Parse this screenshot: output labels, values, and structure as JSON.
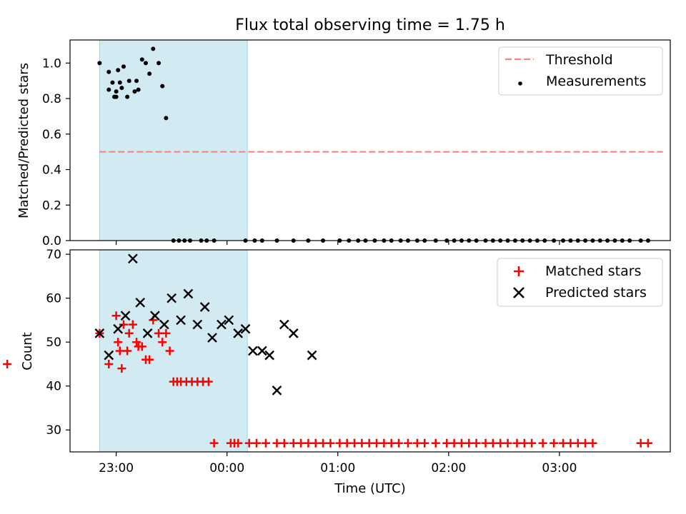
{
  "chart_data": [
    {
      "type": "scatter",
      "title": "Flux total observing time = 1.75 h",
      "xlabel": "",
      "ylabel": "Matched/Predicted stars",
      "xlim": [
        "22:35",
        "04:00"
      ],
      "ylim": [
        0,
        1.13
      ],
      "x_ticks": [
        "23:00",
        "00:00",
        "01:00",
        "02:00",
        "03:00"
      ],
      "y_ticks": [
        "0.0",
        "0.2",
        "0.4",
        "0.6",
        "0.8",
        "1.0"
      ],
      "shaded_interval": {
        "x": [
          "22:51",
          "00:11"
        ],
        "color": "#add8e6"
      },
      "legend_position": "top-right",
      "series": [
        {
          "name": "Threshold",
          "style": "dashed-line",
          "color": "#ff8080",
          "x": [
            "22:51",
            "03:56"
          ],
          "values": [
            0.5,
            0.5
          ]
        },
        {
          "name": "Measurements",
          "style": "dot",
          "color": "#000000",
          "x": [
            "22:51",
            "22:56",
            "22:56",
            "22:58",
            "22:59",
            "23:00",
            "23:00",
            "23:01",
            "23:02",
            "23:03",
            "23:04",
            "23:06",
            "23:07",
            "23:10",
            "23:11",
            "23:12",
            "23:14",
            "23:16",
            "23:18",
            "23:20",
            "23:23",
            "23:25",
            "23:27",
            "23:31",
            "23:34",
            "23:37",
            "23:40",
            "23:46",
            "23:49",
            "23:53",
            "00:10",
            "00:15",
            "00:19",
            "00:27",
            "00:36",
            "00:44",
            "00:52",
            "01:01",
            "01:06",
            "01:11",
            "01:15",
            "01:20",
            "01:25",
            "01:29",
            "01:34",
            "01:38",
            "01:43",
            "01:47",
            "01:53",
            "01:59",
            "02:03",
            "02:07",
            "02:11",
            "02:15",
            "02:20",
            "02:24",
            "02:28",
            "02:32",
            "02:36",
            "02:40",
            "02:44",
            "02:48",
            "02:52",
            "02:57",
            "03:02",
            "03:06",
            "03:10",
            "03:14",
            "03:18",
            "03:22",
            "03:26",
            "03:30",
            "03:34",
            "03:38",
            "03:44",
            "03:48"
          ],
          "values": [
            1.0,
            0.95,
            0.85,
            0.89,
            0.81,
            0.81,
            0.84,
            0.96,
            0.89,
            0.86,
            0.98,
            0.81,
            0.9,
            0.84,
            0.9,
            0.85,
            1.02,
            1.0,
            0.94,
            1.08,
            1.0,
            0.87,
            0.69,
            0.0,
            0.0,
            0.0,
            0.0,
            0.0,
            0.0,
            0.0,
            0.0,
            0.0,
            0.0,
            0.0,
            0.0,
            0.0,
            0.0,
            0.0,
            0.0,
            0.0,
            0.0,
            0.0,
            0.0,
            0.0,
            0.0,
            0.0,
            0.0,
            0.0,
            0.0,
            0.0,
            0.0,
            0.0,
            0.0,
            0.0,
            0.0,
            0.0,
            0.0,
            0.0,
            0.0,
            0.0,
            0.0,
            0.0,
            0.0,
            0.0,
            0.0,
            0.0,
            0.0,
            0.0,
            0.0,
            0.0,
            0.0,
            0.0,
            0.0,
            0.0,
            0.0,
            0.0
          ]
        }
      ]
    },
    {
      "type": "scatter",
      "title": "",
      "xlabel": "Time (UTC)",
      "ylabel": "Count",
      "xlim": [
        "22:35",
        "04:00"
      ],
      "ylim": [
        25,
        71
      ],
      "x_ticks": [
        "23:00",
        "00:00",
        "01:00",
        "02:00",
        "03:00"
      ],
      "y_ticks": [
        "30",
        "40",
        "50",
        "60",
        "70"
      ],
      "shaded_interval": {
        "x": [
          "22:51",
          "00:11"
        ],
        "color": "#add8e6"
      },
      "legend_position": "top-right",
      "series": [
        {
          "name": "Matched stars",
          "marker": "plus",
          "color": "#ff0000",
          "x": [
            "22:51",
            "22:56",
            "22:01",
            "23:01",
            "23:00",
            "23:02",
            "23:03",
            "23:04",
            "23:06",
            "23:07",
            "23:09",
            "23:11",
            "23:12",
            "23:14",
            "23:16",
            "23:18",
            "23:20",
            "23:23",
            "23:25",
            "23:27",
            "23:29",
            "23:31",
            "23:33",
            "23:35",
            "23:38",
            "23:41",
            "23:44",
            "23:47",
            "23:50",
            "23:53",
            "00:02",
            "00:04",
            "00:06",
            "00:12",
            "00:16",
            "00:21",
            "00:27",
            "00:31",
            "00:36",
            "00:40",
            "00:44",
            "00:48",
            "00:52",
            "00:56",
            "01:01",
            "01:05",
            "01:09",
            "01:13",
            "01:17",
            "01:21",
            "01:25",
            "01:29",
            "01:33",
            "01:38",
            "01:43",
            "01:47",
            "01:53",
            "01:59",
            "02:03",
            "02:07",
            "02:11",
            "02:15",
            "02:20",
            "02:24",
            "02:28",
            "02:32",
            "02:37",
            "02:41",
            "02:45",
            "02:51",
            "02:57",
            "03:02",
            "03:06",
            "03:10",
            "03:14",
            "03:18",
            "03:44",
            "03:48"
          ],
          "values": [
            52,
            45,
            45,
            50,
            56,
            48,
            44,
            54,
            48,
            52,
            54,
            50,
            49,
            49,
            46,
            46,
            55,
            52,
            50,
            52,
            48,
            41,
            41,
            41,
            41,
            41,
            41,
            41,
            41,
            27,
            27,
            27,
            27,
            27,
            27,
            27,
            27,
            27,
            27,
            27,
            27,
            27,
            27,
            27,
            27,
            27,
            27,
            27,
            27,
            27,
            27,
            27,
            27,
            27,
            27,
            27,
            27,
            27,
            27,
            27,
            27,
            27,
            27,
            27,
            27,
            27,
            27,
            27,
            27,
            27,
            27,
            27,
            27,
            27,
            27,
            27,
            27,
            27
          ]
        },
        {
          "name": "Predicted stars",
          "marker": "x",
          "color": "#000000",
          "x": [
            "22:51",
            "22:56",
            "23:01",
            "23:05",
            "23:09",
            "23:13",
            "23:17",
            "23:21",
            "23:26",
            "23:30",
            "23:35",
            "23:39",
            "23:44",
            "23:48",
            "23:52",
            "23:57",
            "00:01",
            "00:06",
            "00:10",
            "00:14",
            "00:19",
            "00:23",
            "00:27",
            "00:31",
            "00:36",
            "00:46"
          ],
          "values": [
            52,
            47,
            53,
            56,
            69,
            59,
            52,
            56,
            54,
            60,
            55,
            61,
            54,
            58,
            51,
            54,
            55,
            52,
            53,
            48,
            48,
            47,
            39,
            54,
            52,
            47
          ]
        }
      ]
    }
  ]
}
